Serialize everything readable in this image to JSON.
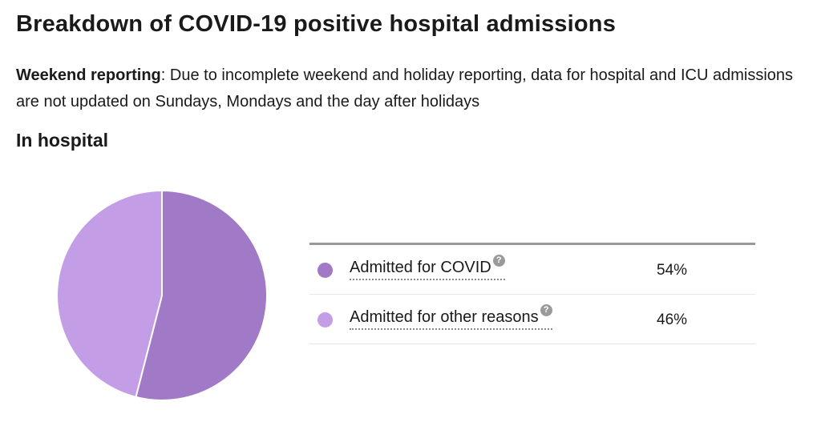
{
  "header": {
    "title": "Breakdown of COVID-19 positive hospital admissions",
    "notice_label": "Weekend reporting",
    "notice_text": ": Due to incomplete weekend and holiday reporting, data for hospital and ICU admissions are not updated on Sundays, Mondays and the day after holidays",
    "section_title": "In hospital"
  },
  "help_glyph": "?",
  "chart_data": {
    "type": "pie",
    "categories": [
      "Admitted for COVID",
      "Admitted for other reasons"
    ],
    "values": [
      54,
      46
    ],
    "labels": [
      "54%",
      "46%"
    ],
    "colors": [
      "#a07ac6",
      "#c39ee6"
    ],
    "legend_placement": "right"
  }
}
